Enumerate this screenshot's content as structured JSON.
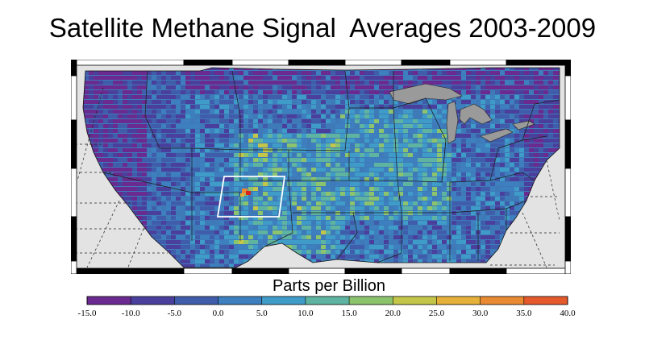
{
  "title": "Satellite Methane Signal  Averages 2003-2009",
  "colorbar": {
    "label": "Parts per Billion",
    "ticks": [
      "-15.0",
      "-10.0",
      "-5.0",
      "0.0",
      "5.0",
      "10.0",
      "15.0",
      "20.0",
      "25.0",
      "30.0",
      "35.0",
      "40.0"
    ],
    "colors": [
      "#6a2a8f",
      "#4a3f9c",
      "#3f5dab",
      "#3d7fbf",
      "#3f9bc7",
      "#5eb4a0",
      "#8cc46e",
      "#c4c64a",
      "#e5b13a",
      "#e98a33",
      "#e45a2c",
      "#d8241f"
    ]
  },
  "map": {
    "land_background": "#3f7ab8",
    "ocean_color": "#e3e3e3",
    "lakes_color": "#9a9a9a",
    "highlight_box_color": "#ffffff",
    "hotspot_color": "#d8241f"
  }
}
